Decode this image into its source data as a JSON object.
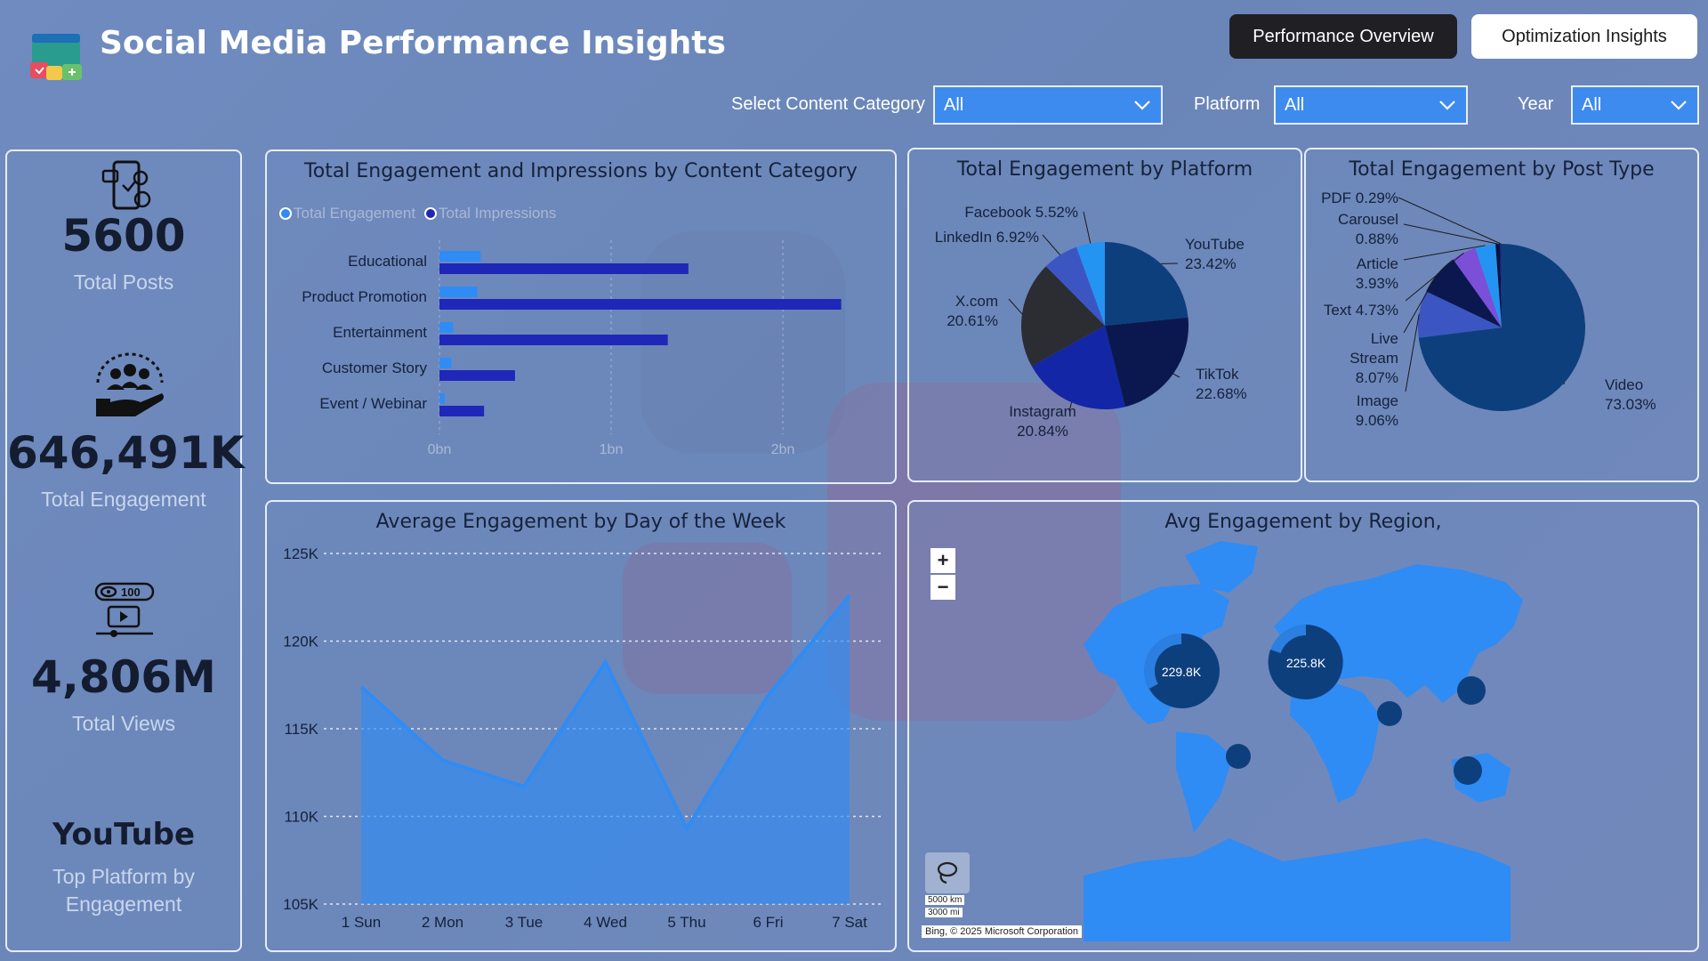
{
  "header": {
    "title": "Social Media Performance Insights",
    "buttons": {
      "overview": "Performance Overview",
      "optimization": "Optimization Insights"
    }
  },
  "filters": {
    "content_category": {
      "label": "Select Content Category",
      "value": "All"
    },
    "platform": {
      "label": "Platform",
      "value": "All"
    },
    "year": {
      "label": "Year",
      "value": "All"
    }
  },
  "kpis": [
    {
      "value": "5600",
      "label": "Total Posts",
      "icon": "phone-social-icon"
    },
    {
      "value": "646,491K",
      "label": "Total Engagement",
      "icon": "audience-hand-icon"
    },
    {
      "value": "4,806M",
      "label": "Total Views",
      "icon": "views-video-icon"
    },
    {
      "value": "YouTube",
      "label": "Top Platform by Engagement",
      "icon": ""
    }
  ],
  "category_chart": {
    "title": "Total Engagement and Impressions by Content Category",
    "legend": [
      "Total Engagement",
      "Total Impressions"
    ],
    "colors": {
      "engagement": "#2f8cf5",
      "impressions": "#1f27b8"
    }
  },
  "platform_chart": {
    "title": "Total Engagement by Platform",
    "labels": [
      {
        "name": "YouTube",
        "pct": "23.42%"
      },
      {
        "name": "TikTok",
        "pct": "22.68%"
      },
      {
        "name": "Instagram",
        "pct": "20.84%"
      },
      {
        "name": "X.com",
        "pct": "20.61%"
      },
      {
        "name": "LinkedIn 6.92%",
        "pct": ""
      },
      {
        "name": "Facebook 5.52%",
        "pct": ""
      }
    ]
  },
  "posttype_chart": {
    "title": "Total Engagement by Post Type",
    "labels": [
      {
        "name": "Video",
        "pct": "73.03%"
      },
      {
        "name": "Image",
        "pct": "9.06%"
      },
      {
        "name": "Live",
        "name2": "Stream",
        "pct": "8.07%"
      },
      {
        "name": "Text 4.73%",
        "pct": ""
      },
      {
        "name": "Article",
        "pct": "3.93%"
      },
      {
        "name": "Carousel",
        "pct": "0.88%"
      },
      {
        "name": "PDF 0.29%",
        "pct": ""
      }
    ]
  },
  "day_chart": {
    "title": "Average Engagement by Day of the Week",
    "color": "#2f8cf5"
  },
  "region_map": {
    "title": "Avg Engagement by Region,",
    "bubble_labels": [
      "229.8K",
      "225.8K"
    ],
    "zoom_in": "+",
    "zoom_out": "−",
    "scale_km": "5000 km",
    "scale_mi": "3000 mi",
    "credit": "Bing, © 2025 Microsoft Corporation"
  },
  "chart_data": [
    {
      "type": "bar",
      "title": "Total Engagement and Impressions by Content Category",
      "categories": [
        "Educational",
        "Product Promotion",
        "Entertainment",
        "Customer Story",
        "Event / Webinar"
      ],
      "series": [
        {
          "name": "Total Engagement",
          "values": [
            0.24,
            0.22,
            0.08,
            0.07,
            0.03
          ]
        },
        {
          "name": "Total Impressions",
          "values": [
            1.45,
            2.34,
            1.33,
            0.44,
            0.26
          ]
        }
      ],
      "xticks": [
        "0bn",
        "1bn",
        "2bn"
      ],
      "xlim": [
        0,
        2.5
      ],
      "grid": true
    },
    {
      "type": "pie",
      "title": "Total Engagement by Platform",
      "categories": [
        "YouTube",
        "TikTok",
        "Instagram",
        "X.com",
        "LinkedIn",
        "Facebook"
      ],
      "values": [
        23.42,
        22.68,
        20.84,
        20.61,
        6.92,
        5.52
      ],
      "colors": [
        "#0e3f7d",
        "#0b1850",
        "#1326a6",
        "#2b2d33",
        "#3b56c2",
        "#2494f2"
      ]
    },
    {
      "type": "pie",
      "title": "Total Engagement by Post Type",
      "categories": [
        "Video",
        "Image",
        "Live Stream",
        "Text",
        "Article",
        "Carousel",
        "PDF"
      ],
      "values": [
        73.03,
        9.06,
        8.07,
        4.73,
        3.93,
        0.88,
        0.29
      ],
      "colors": [
        "#0e3f7d",
        "#3b56c2",
        "#0b1850",
        "#7b4fd8",
        "#2494f2",
        "#0a1240",
        "#1b2e8a"
      ]
    },
    {
      "type": "area",
      "title": "Average Engagement by Day of the Week",
      "categories": [
        "1 Sun",
        "2 Mon",
        "3 Tue",
        "4 Wed",
        "5 Thu",
        "6 Fri",
        "7 Sat"
      ],
      "values": [
        117400,
        113200,
        111700,
        118800,
        109300,
        116900,
        122600
      ],
      "yticks": [
        "105K",
        "110K",
        "115K",
        "120K",
        "125K"
      ],
      "ylim": [
        105000,
        125000
      ],
      "grid": true
    }
  ]
}
